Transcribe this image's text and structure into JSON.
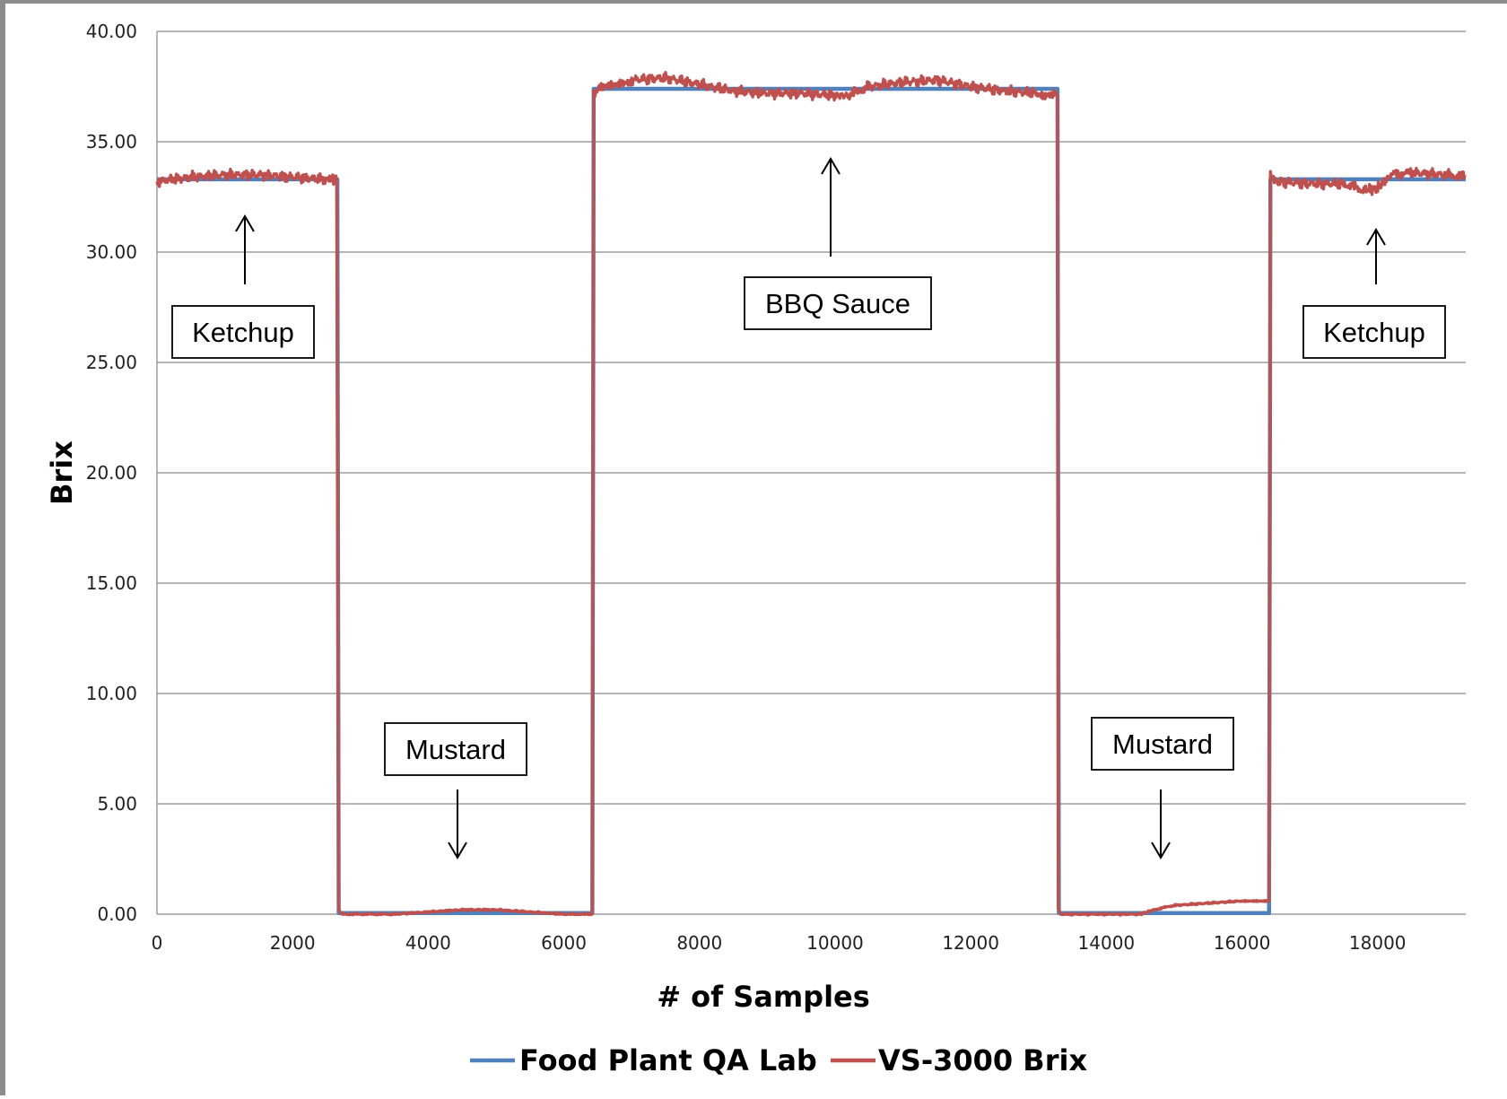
{
  "chart_data": {
    "type": "line",
    "title": "",
    "xlabel": "# of Samples",
    "ylabel": "Brix",
    "xlim": [
      0,
      19300
    ],
    "ylim": [
      0,
      40
    ],
    "x_ticks": [
      "0",
      "2000",
      "4000",
      "6000",
      "8000",
      "10000",
      "12000",
      "14000",
      "16000",
      "18000"
    ],
    "y_ticks": [
      "0.00",
      "5.00",
      "10.00",
      "15.00",
      "20.00",
      "25.00",
      "30.00",
      "35.00",
      "40.00"
    ],
    "grid": "horizontal",
    "legend_position": "bottom",
    "series": [
      {
        "name": "Food Plant QA Lab",
        "color": "#4f81bd",
        "x": [
          0,
          2660,
          2680,
          6420,
          6440,
          13280,
          13300,
          16400,
          16420,
          19300
        ],
        "y": [
          33.3,
          33.3,
          0.05,
          0.05,
          37.4,
          37.4,
          0.05,
          0.05,
          33.3,
          33.3
        ]
      },
      {
        "name": "VS-3000 Brix",
        "color": "#c0504d",
        "x": [
          0,
          500,
          1000,
          1500,
          2000,
          2500,
          2650,
          2680,
          2720,
          3500,
          4000,
          4500,
          5000,
          5500,
          6000,
          6420,
          6440,
          6600,
          7000,
          7500,
          8000,
          8500,
          9000,
          9500,
          10000,
          10200,
          10500,
          11000,
          11500,
          12000,
          12500,
          13000,
          13280,
          13290,
          13320,
          14000,
          14500,
          14700,
          15000,
          15500,
          16000,
          16400,
          16420,
          16500,
          17000,
          17500,
          17800,
          18000,
          18200,
          18500,
          19000,
          19300
        ],
        "y": [
          33.2,
          33.4,
          33.5,
          33.5,
          33.4,
          33.3,
          33.3,
          0.2,
          0.0,
          0.0,
          0.1,
          0.2,
          0.2,
          0.1,
          0.0,
          0.0,
          37.2,
          37.6,
          37.8,
          37.9,
          37.6,
          37.3,
          37.2,
          37.2,
          37.1,
          37.1,
          37.5,
          37.7,
          37.8,
          37.5,
          37.3,
          37.2,
          37.1,
          0.3,
          0.0,
          0.0,
          0.0,
          0.2,
          0.4,
          0.5,
          0.6,
          0.6,
          33.5,
          33.2,
          33.1,
          33.1,
          32.8,
          32.9,
          33.5,
          33.6,
          33.5,
          33.4
        ]
      }
    ],
    "annotations": [
      {
        "text": "Ketchup",
        "arrow": "up"
      },
      {
        "text": "Mustard",
        "arrow": "down"
      },
      {
        "text": "BBQ Sauce",
        "arrow": "up"
      },
      {
        "text": "Mustard",
        "arrow": "down"
      },
      {
        "text": "Ketchup",
        "arrow": "up"
      }
    ]
  }
}
